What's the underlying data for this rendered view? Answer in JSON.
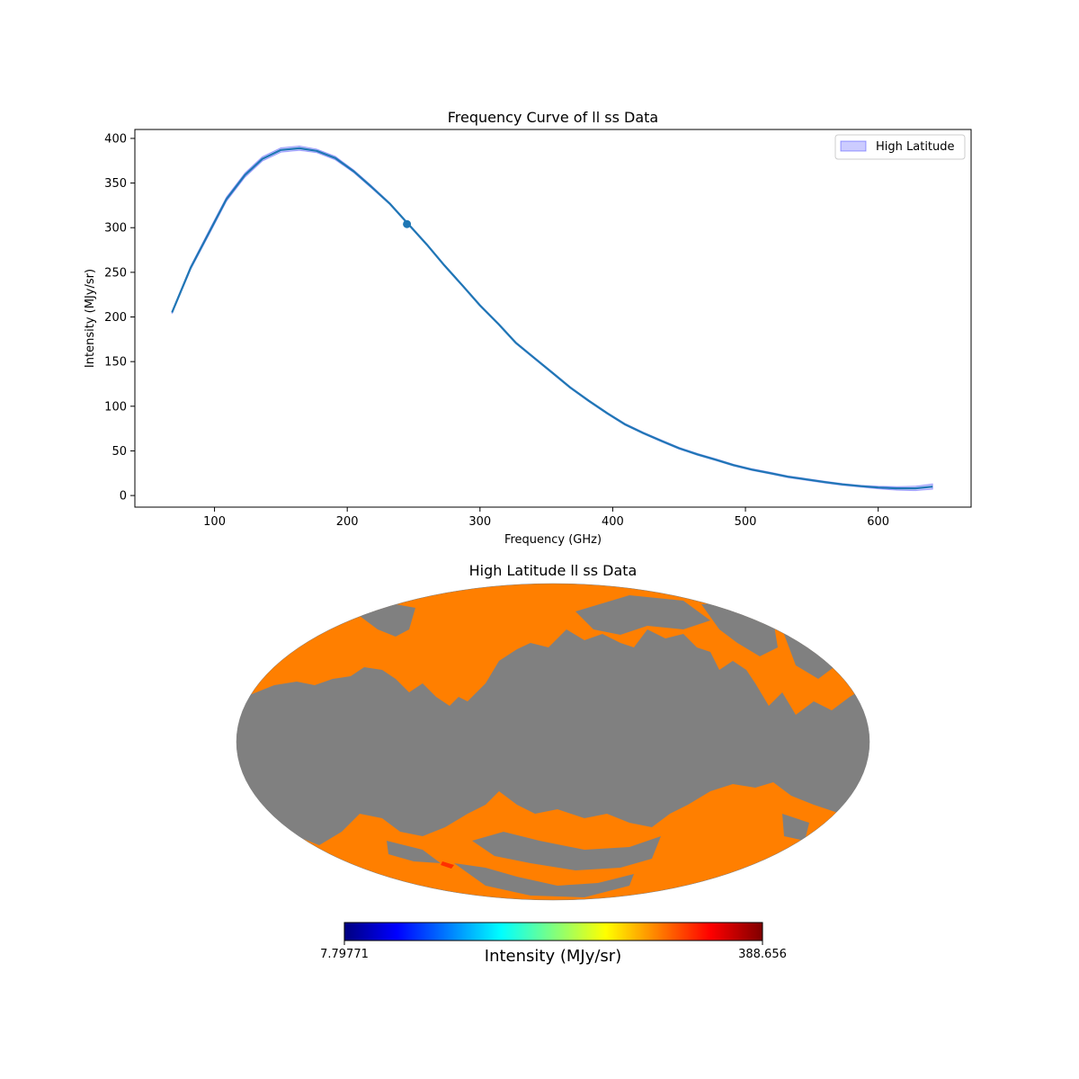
{
  "chart_data": [
    {
      "type": "line",
      "title": "Frequency Curve of ll ss Data",
      "xlabel": "Frequency (GHz)",
      "ylabel": "Intensity (MJy/sr)",
      "xlim": [
        40,
        670
      ],
      "ylim": [
        -13,
        410
      ],
      "xticks": [
        100,
        200,
        300,
        400,
        500,
        600
      ],
      "yticks": [
        0,
        50,
        100,
        150,
        200,
        250,
        300,
        350,
        400
      ],
      "legend": {
        "label": "High Latitude",
        "placement": "top-right"
      },
      "series": [
        {
          "name": "High Latitude",
          "color": "#1f77b4",
          "band_color": "#0000ff",
          "x": [
            68,
            82,
            96,
            109,
            123,
            136,
            150,
            164,
            177,
            191,
            205,
            218,
            232,
            246,
            260,
            273,
            287,
            300,
            314,
            327,
            341,
            355,
            368,
            382,
            396,
            409,
            423,
            437,
            450,
            464,
            478,
            491,
            505,
            519,
            532,
            546,
            560,
            573,
            587,
            600,
            614,
            628,
            641
          ],
          "y": [
            205,
            255,
            295,
            332,
            359,
            377,
            387,
            389,
            386,
            378,
            363,
            346,
            327,
            304,
            281,
            258,
            235,
            213,
            192,
            171,
            154,
            137,
            121,
            106,
            92,
            80,
            70,
            61,
            53,
            46,
            40,
            34,
            29,
            25,
            21,
            18,
            15,
            12.5,
            10.5,
            9,
            8,
            8,
            10
          ],
          "band_halfwidth": [
            1.5,
            2,
            2.5,
            2.5,
            2.5,
            2.5,
            2.5,
            2.5,
            2,
            2,
            1.5,
            1.5,
            1,
            1,
            1,
            1,
            1,
            1,
            1,
            1,
            1,
            1,
            1,
            1,
            1,
            1,
            1,
            1,
            1,
            1,
            1,
            1,
            1,
            1,
            1,
            1,
            1,
            1,
            1,
            1.5,
            2,
            2.5,
            3
          ],
          "marker_point": {
            "x": 245,
            "y": 304
          }
        }
      ]
    },
    {
      "type": "heatmap",
      "title": "High Latitude ll ss Data",
      "projection": "mollweide",
      "masked_color": "#808080",
      "data_color": "#ff7f00",
      "colorbar": {
        "label": "Intensity (MJy/sr)",
        "min_label": "7.79771",
        "max_label": "388.656",
        "colormap": [
          "#00007f",
          "#0000ff",
          "#007fff",
          "#00ffff",
          "#7fff7f",
          "#ffff00",
          "#ff7f00",
          "#ff0000",
          "#7f0000"
        ]
      }
    }
  ]
}
